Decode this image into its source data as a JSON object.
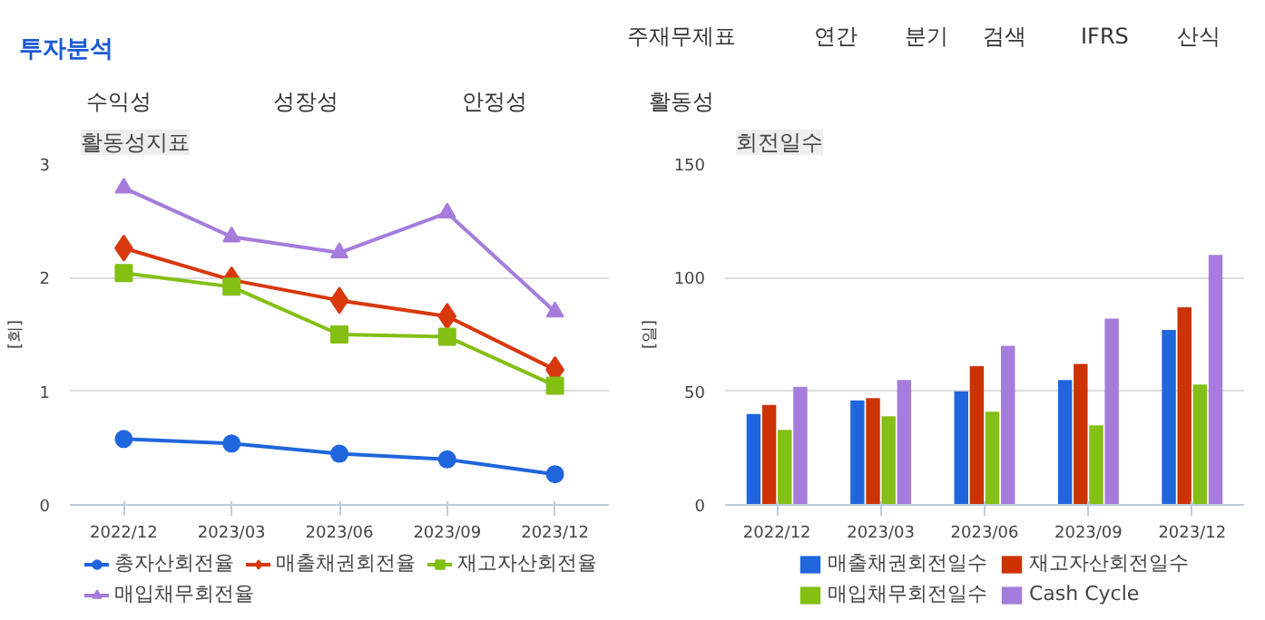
{
  "chart_data": [
    {
      "type": "other",
      "title": "투자분석",
      "annotations": [
        "주재무제표",
        "연간",
        "분기",
        "검색",
        "IFRS",
        "산식",
        "수익성",
        "성장성",
        "안정성",
        "활동성"
      ]
    },
    {
      "type": "line",
      "title": "활동성지표",
      "ylabel": "[회]",
      "categories": [
        "2022/12",
        "2023/03",
        "2023/06",
        "2023/09",
        "2023/12"
      ],
      "ylim": [
        0,
        3
      ],
      "yticks": [
        0,
        1,
        2,
        3
      ],
      "grid": "y",
      "legend": "bottom",
      "series": [
        {
          "name": "총자산회전율",
          "color": "#1f66dd",
          "marker": "circle",
          "values": [
            0.58,
            0.54,
            0.45,
            0.4,
            0.27
          ]
        },
        {
          "name": "매출채권회전율",
          "color": "#d8380c",
          "marker": "diamond",
          "values": [
            2.26,
            1.98,
            1.8,
            1.66,
            1.19
          ]
        },
        {
          "name": "재고자산회전율",
          "color": "#84bf14",
          "marker": "square",
          "values": [
            2.04,
            1.92,
            1.5,
            1.48,
            1.05
          ]
        },
        {
          "name": "매입채무회전율",
          "color": "#a57cdc",
          "marker": "triangle",
          "values": [
            2.79,
            2.36,
            2.22,
            2.57,
            1.7
          ]
        }
      ]
    },
    {
      "type": "bar",
      "title": "회전일수",
      "ylabel": "[일]",
      "categories": [
        "2022/12",
        "2023/03",
        "2023/06",
        "2023/09",
        "2023/12"
      ],
      "ylim": [
        0,
        150
      ],
      "yticks": [
        0,
        50,
        100,
        150
      ],
      "grid": "y",
      "legend": "bottom",
      "series": [
        {
          "name": "매출채권회전일수",
          "color": "#1f66dd",
          "values": [
            40,
            46,
            50,
            55,
            77
          ]
        },
        {
          "name": "재고자산회전일수",
          "color": "#cc3300",
          "values": [
            44,
            47,
            61,
            62,
            87
          ]
        },
        {
          "name": "매입채무회전일수",
          "color": "#84bf14",
          "values": [
            33,
            39,
            41,
            35,
            53
          ]
        },
        {
          "name": "Cash Cycle",
          "color": "#a57cdc",
          "values": [
            52,
            55,
            70,
            82,
            110
          ]
        }
      ]
    }
  ]
}
